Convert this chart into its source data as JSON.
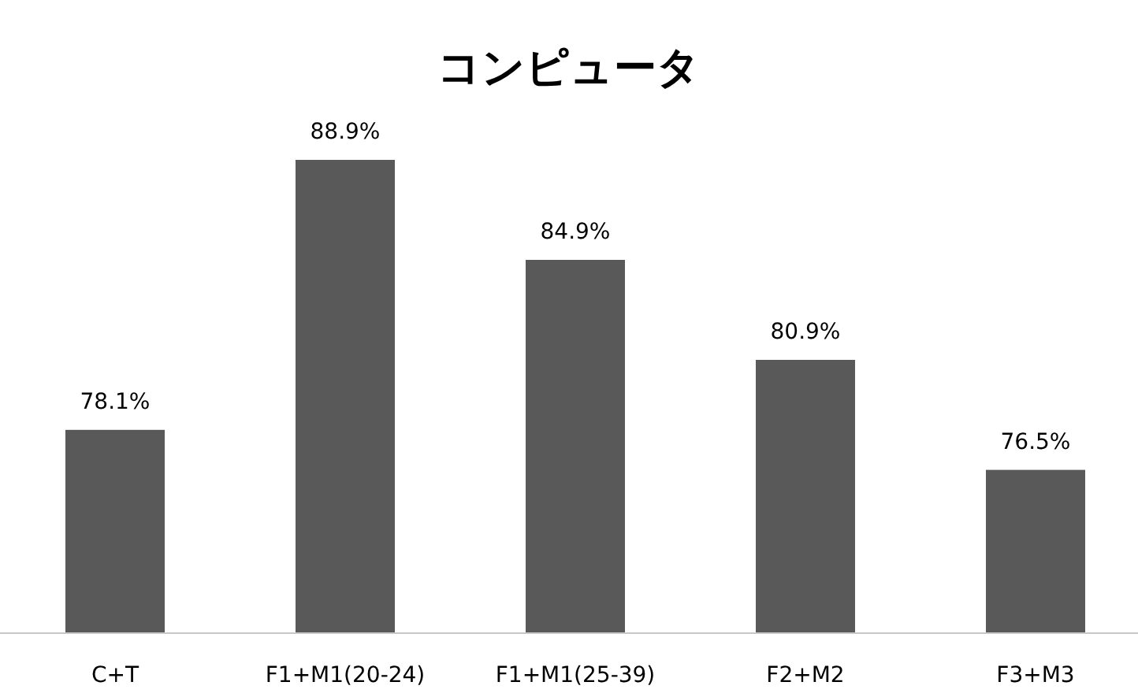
{
  "chart_data": {
    "type": "bar",
    "title": "コンピュータ",
    "categories": [
      "C+T",
      "F1+M1(20-24)",
      "F1+M1(25-39)",
      "F2+M2",
      "F3+M3"
    ],
    "values": [
      78.1,
      88.9,
      84.9,
      80.9,
      76.5
    ],
    "value_labels": [
      "78.1%",
      "88.9%",
      "84.9%",
      "80.9%",
      "76.5%"
    ],
    "color": "#595959",
    "ylim": [
      70,
      88.9
    ],
    "tick_labels": "x"
  }
}
